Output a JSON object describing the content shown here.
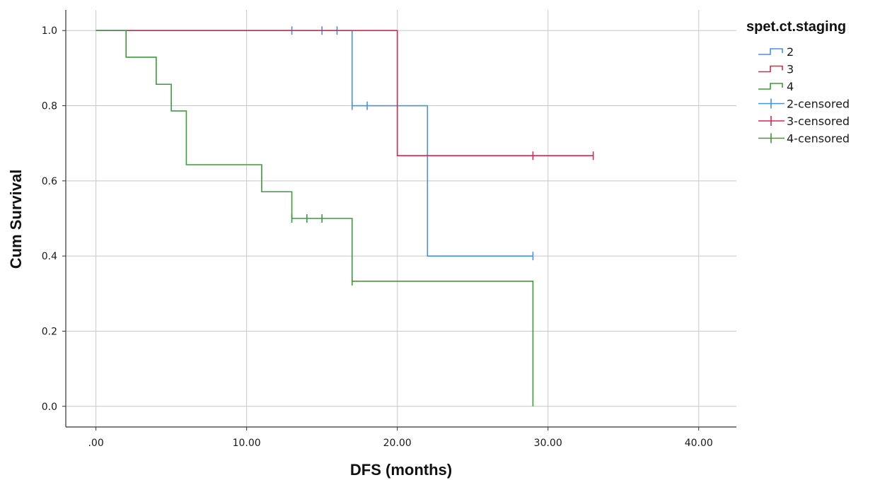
{
  "chart_data": {
    "type": "line",
    "subtype": "kaplan-meier-step",
    "title": "",
    "xlabel": "DFS (months)",
    "ylabel": "Cum Survival",
    "xlim": [
      -2,
      42.5
    ],
    "ylim": [
      -0.055,
      1.055
    ],
    "x_ticks": [
      0,
      10,
      20,
      30,
      40
    ],
    "x_tick_labels": [
      ".00",
      "10.00",
      "20.00",
      "30.00",
      "40.00"
    ],
    "y_ticks": [
      0,
      0.2,
      0.4,
      0.6,
      0.8,
      1.0
    ],
    "y_tick_labels": [
      "0.0",
      "0.2",
      "0.4",
      "0.6",
      "0.8",
      "1.0"
    ],
    "grid": true,
    "legend_title": "spet.ct.staging",
    "legend_position": "right",
    "legend": [
      {
        "label": "2",
        "kind": "line",
        "color": "#4a90e2"
      },
      {
        "label": "3",
        "kind": "line",
        "color": "#d42a4f"
      },
      {
        "label": "4",
        "kind": "line",
        "color": "#3d9a3d"
      },
      {
        "label": "2-censored",
        "kind": "censor",
        "color": "#4a90e2"
      },
      {
        "label": "3-censored",
        "kind": "censor",
        "color": "#d42a4f"
      },
      {
        "label": "4-censored",
        "kind": "censor",
        "color": "#3d9a3d"
      }
    ],
    "series": [
      {
        "name": "2",
        "color": "#4a90e2",
        "steps": [
          [
            0,
            1.0
          ],
          [
            17,
            0.8
          ],
          [
            22,
            0.4
          ]
        ],
        "end_x": 29,
        "censored": [
          [
            13,
            1.0
          ],
          [
            15,
            1.0
          ],
          [
            16,
            1.0
          ],
          [
            17,
            0.8
          ],
          [
            18,
            0.8
          ],
          [
            29,
            0.4
          ]
        ]
      },
      {
        "name": "3",
        "color": "#d42a4f",
        "steps": [
          [
            0,
            1.0
          ],
          [
            20,
            0.667
          ]
        ],
        "end_x": 33,
        "censored": [
          [
            29,
            0.667
          ],
          [
            33,
            0.667
          ]
        ]
      },
      {
        "name": "4",
        "color": "#3d9a3d",
        "steps": [
          [
            0,
            1.0
          ],
          [
            2,
            0.929
          ],
          [
            4,
            0.857
          ],
          [
            5,
            0.786
          ],
          [
            6,
            0.643
          ],
          [
            11,
            0.571
          ],
          [
            13,
            0.5
          ],
          [
            17,
            0.333
          ],
          [
            29,
            0.0
          ]
        ],
        "end_x": 29,
        "censored": [
          [
            13,
            0.5
          ],
          [
            14,
            0.5
          ],
          [
            15,
            0.5
          ],
          [
            17,
            0.333
          ]
        ]
      }
    ]
  }
}
